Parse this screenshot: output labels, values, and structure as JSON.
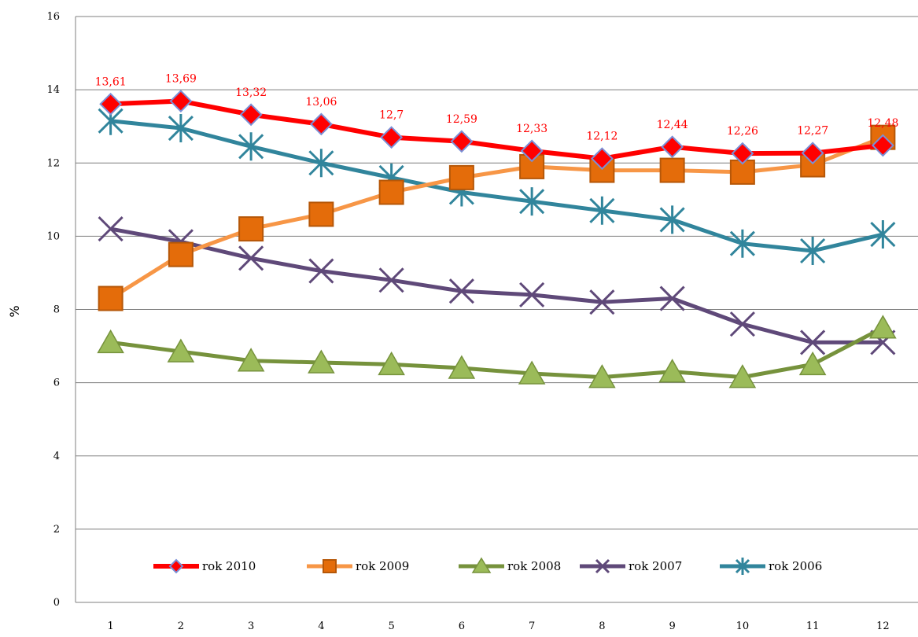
{
  "chart_data": {
    "type": "line",
    "ylabel": "%",
    "ylim": [
      0,
      16
    ],
    "yticks": [
      0,
      2,
      4,
      6,
      8,
      10,
      12,
      14,
      16
    ],
    "categories": [
      "1",
      "2",
      "3",
      "4",
      "5",
      "6",
      "7",
      "8",
      "9",
      "10",
      "11",
      "12"
    ],
    "grid": "horizontal",
    "legend_position": "bottom-inside",
    "series": [
      {
        "name": "rok 2010",
        "color": "#ff0000",
        "marker": "diamond",
        "marker_fill": "#ff0000",
        "values": [
          13.61,
          13.69,
          13.32,
          13.06,
          12.7,
          12.59,
          12.33,
          12.12,
          12.44,
          12.26,
          12.27,
          12.48
        ],
        "labels": [
          "13,61",
          "13,69",
          "13,32",
          "13,06",
          "12,7",
          "12,59",
          "12,33",
          "12,12",
          "12,44",
          "12,26",
          "12,27",
          "12,48"
        ]
      },
      {
        "name": "rok 2009",
        "color": "#f79646",
        "marker": "square",
        "marker_fill": "#e46c0a",
        "values": [
          8.3,
          9.5,
          10.2,
          10.6,
          11.2,
          11.6,
          11.9,
          11.8,
          11.8,
          11.75,
          11.95,
          12.7
        ]
      },
      {
        "name": "rok 2008",
        "color": "#76923c",
        "marker": "triangle",
        "marker_fill": "#9bbb59",
        "values": [
          7.1,
          6.85,
          6.6,
          6.55,
          6.5,
          6.4,
          6.25,
          6.15,
          6.3,
          6.15,
          6.5,
          7.5
        ]
      },
      {
        "name": "rok 2007",
        "color": "#5f4979",
        "marker": "x",
        "marker_fill": "#5f4979",
        "values": [
          10.2,
          9.85,
          9.4,
          9.05,
          8.8,
          8.5,
          8.4,
          8.2,
          8.3,
          7.6,
          7.1,
          7.1
        ]
      },
      {
        "name": "rok 2006",
        "color": "#31859c",
        "marker": "star",
        "marker_fill": "#31859c",
        "values": [
          13.15,
          12.95,
          12.45,
          12.0,
          11.6,
          11.2,
          10.95,
          10.7,
          10.45,
          9.8,
          9.6,
          10.05
        ]
      }
    ]
  }
}
